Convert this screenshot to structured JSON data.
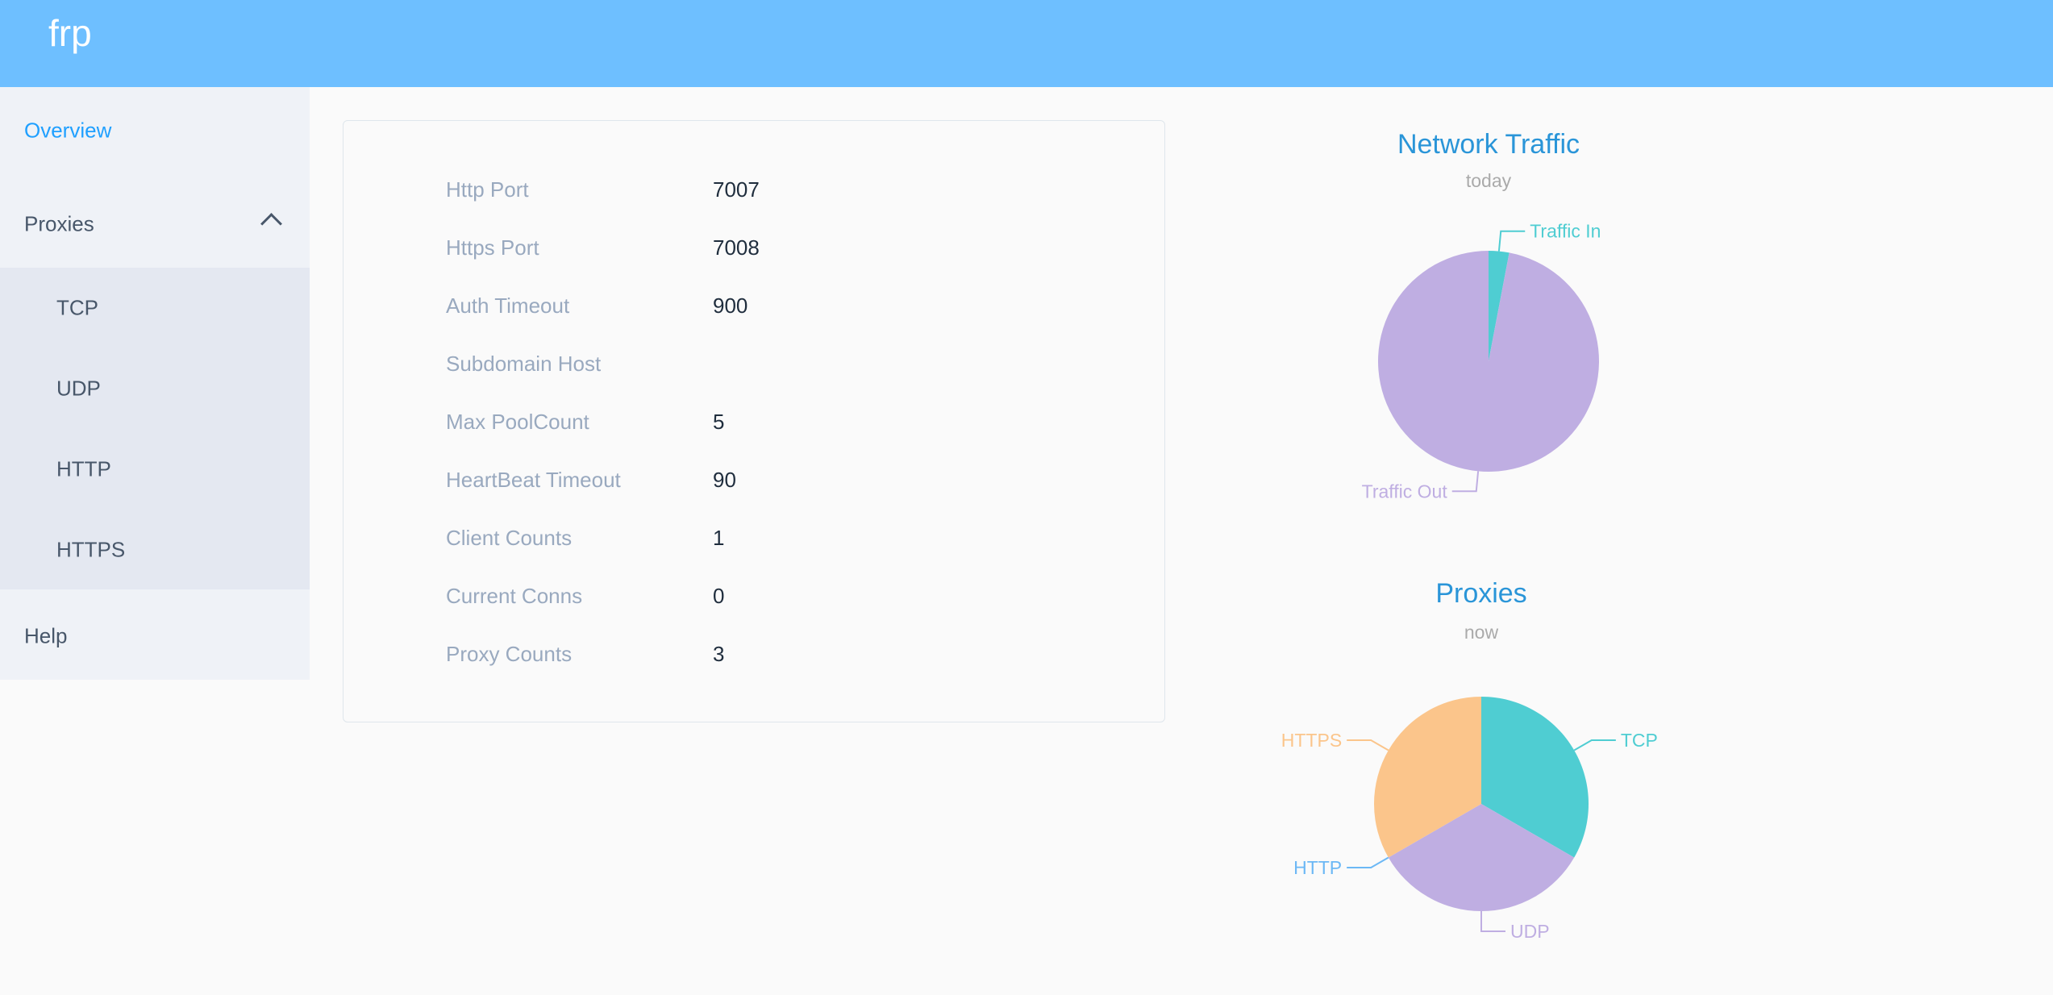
{
  "header": {
    "brand": "frp"
  },
  "sidebar": {
    "overview": "Overview",
    "proxies": "Proxies",
    "sub_items": [
      "TCP",
      "UDP",
      "HTTP",
      "HTTPS"
    ],
    "help": "Help"
  },
  "server_info": [
    {
      "label": "Http Port",
      "value": "7007"
    },
    {
      "label": "Https Port",
      "value": "7008"
    },
    {
      "label": "Auth Timeout",
      "value": "900"
    },
    {
      "label": "Subdomain Host",
      "value": ""
    },
    {
      "label": "Max PoolCount",
      "value": "5"
    },
    {
      "label": "HeartBeat Timeout",
      "value": "90"
    },
    {
      "label": "Client Counts",
      "value": "1"
    },
    {
      "label": "Current Conns",
      "value": "0"
    },
    {
      "label": "Proxy Counts",
      "value": "3"
    }
  ],
  "chart_data": [
    {
      "type": "pie",
      "title": "Network Traffic",
      "subtitle": "today",
      "categories": [
        "Traffic In",
        "Traffic Out"
      ],
      "values": [
        3,
        97
      ],
      "colors": [
        "#4fcdd2",
        "#bfaee2"
      ]
    },
    {
      "type": "pie",
      "title": "Proxies",
      "subtitle": "now",
      "categories": [
        "TCP",
        "UDP",
        "HTTP",
        "HTTPS"
      ],
      "values": [
        1,
        1,
        0,
        1
      ],
      "colors": [
        "#4fcdd2",
        "#bfaee2",
        "#6cb8f5",
        "#fbc58b"
      ]
    }
  ],
  "colors": {
    "header": "#6ebfff",
    "accent": "#20a0ff",
    "chart_title": "#2a95d8"
  }
}
